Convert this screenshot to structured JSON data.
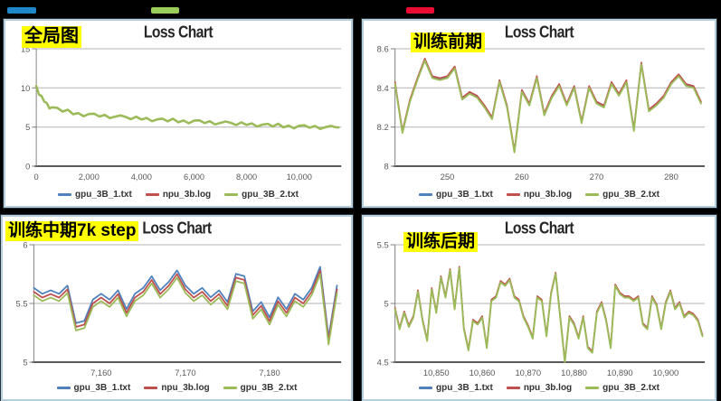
{
  "page": {
    "background": "#000000"
  },
  "top_swatches": [
    {
      "name": "blue-swatch",
      "color": "#1e87c8"
    },
    {
      "name": "green-swatch",
      "color": "#9acd5a"
    },
    {
      "name": "red-swatch",
      "color": "#ea0c32"
    }
  ],
  "chart_data": [
    {
      "id": "global",
      "type": "line",
      "title": "Loss Chart",
      "annotation": "全局图",
      "legend_position": "bottom",
      "grid": true,
      "xlim": [
        0,
        11600
      ],
      "ylim": [
        0,
        15
      ],
      "x_ticks": [
        {
          "v": 0,
          "label": "0"
        },
        {
          "v": 2000,
          "label": "2,000"
        },
        {
          "v": 4000,
          "label": "4,000"
        },
        {
          "v": 6000,
          "label": "6,000"
        },
        {
          "v": 8000,
          "label": "8,000"
        },
        {
          "v": 10000,
          "label": "10,000"
        }
      ],
      "y_ticks": [
        {
          "v": 15,
          "label": "15"
        },
        {
          "v": 10,
          "label": "10"
        },
        {
          "v": 5,
          "label": "5"
        },
        {
          "v": 0,
          "label": "0"
        }
      ],
      "x": [
        0,
        100,
        200,
        300,
        400,
        500,
        600,
        800,
        1000,
        1200,
        1400,
        1600,
        1800,
        2000,
        2200,
        2400,
        2600,
        2800,
        3000,
        3200,
        3400,
        3600,
        3800,
        4000,
        4200,
        4400,
        4600,
        4800,
        5000,
        5200,
        5400,
        5600,
        5800,
        6000,
        6200,
        6400,
        6600,
        6800,
        7000,
        7200,
        7400,
        7600,
        7800,
        8000,
        8200,
        8400,
        8600,
        8800,
        9000,
        9200,
        9400,
        9600,
        9800,
        10000,
        10200,
        10400,
        10600,
        10800,
        11000,
        11200,
        11400,
        11500
      ],
      "base": [
        10.25,
        9.15,
        8.97,
        8.27,
        8.05,
        7.38,
        7.52,
        7.45,
        6.98,
        7.21,
        6.64,
        6.79,
        6.38,
        6.67,
        6.7,
        6.35,
        6.55,
        6.15,
        6.33,
        6.49,
        6.3,
        6.0,
        6.32,
        5.97,
        6.16,
        5.75,
        5.98,
        6.07,
        5.73,
        6.07,
        5.61,
        5.84,
        5.48,
        5.82,
        5.86,
        5.52,
        5.73,
        5.34,
        5.53,
        5.71,
        5.54,
        5.26,
        5.6,
        5.27,
        5.47,
        5.07,
        5.31,
        5.41,
        5.08,
        5.42,
        4.96,
        5.19,
        4.83,
        5.17,
        5.23,
        4.91,
        5.14,
        4.77,
        4.98,
        5.15,
        4.97,
        4.95
      ],
      "series": [
        {
          "name": "gpu_3B_1.txt",
          "color": "#4F81BD",
          "offset": 0,
          "width": 1.3
        },
        {
          "name": "npu_3b.log",
          "color": "#C0504D",
          "offset": 0,
          "width": 1.3
        },
        {
          "name": "gpu_3B_2.txt",
          "color": "#9BBB59",
          "offset": 0,
          "width": 2.6
        }
      ]
    },
    {
      "id": "early",
      "type": "line",
      "title": "Loss Chart",
      "annotation": "训练前期",
      "legend_position": "bottom",
      "grid": true,
      "xlim": [
        243,
        284.5
      ],
      "ylim": [
        8,
        8.6
      ],
      "x_ticks": [
        {
          "v": 250,
          "label": "250"
        },
        {
          "v": 260,
          "label": "260"
        },
        {
          "v": 270,
          "label": "270"
        },
        {
          "v": 280,
          "label": "280"
        }
      ],
      "y_ticks": [
        {
          "v": 8.6,
          "label": "8.6"
        },
        {
          "v": 8.4,
          "label": "8.4"
        },
        {
          "v": 8.2,
          "label": "8.2"
        },
        {
          "v": 8,
          "label": "8"
        }
      ],
      "x": [
        243,
        244,
        245,
        246,
        247,
        248,
        249,
        250,
        251,
        252,
        253,
        254,
        255,
        256,
        257,
        258,
        259,
        260,
        261,
        262,
        263,
        264,
        265,
        266,
        267,
        268,
        269,
        270,
        271,
        272,
        273,
        274,
        275,
        276,
        277,
        278,
        279,
        280,
        281,
        282,
        283,
        284
      ],
      "base": [
        8.42,
        8.17,
        8.33,
        8.44,
        8.54,
        8.45,
        8.44,
        8.45,
        8.5,
        8.34,
        8.37,
        8.35,
        8.3,
        8.24,
        8.43,
        8.3,
        8.07,
        8.38,
        8.31,
        8.45,
        8.26,
        8.35,
        8.41,
        8.31,
        8.4,
        8.22,
        8.4,
        8.32,
        8.3,
        8.42,
        8.36,
        8.43,
        8.18,
        8.52,
        8.28,
        8.31,
        8.35,
        8.42,
        8.46,
        8.41,
        8.4,
        8.32
      ],
      "series": [
        {
          "name": "gpu_3B_1.txt",
          "color": "#4F81BD",
          "offset": 0.006,
          "width": 1.5
        },
        {
          "name": "npu_3b.log",
          "color": "#C0504D",
          "offset": 0.01,
          "width": 1.7
        },
        {
          "name": "gpu_3B_2.txt",
          "color": "#9BBB59",
          "offset": 0,
          "width": 1.9
        }
      ]
    },
    {
      "id": "mid-7k",
      "type": "line",
      "title": "Loss Chart",
      "annotation": "训练中期7k step",
      "legend_position": "bottom",
      "grid": true,
      "xlim": [
        7152,
        7188.5
      ],
      "ylim": [
        5,
        6
      ],
      "x_ticks": [
        {
          "v": 7160,
          "label": "7,160"
        },
        {
          "v": 7170,
          "label": "7,170"
        },
        {
          "v": 7180,
          "label": "7,180"
        }
      ],
      "y_ticks": [
        {
          "v": 6,
          "label": "6"
        },
        {
          "v": 5.5,
          "label": "5.5"
        },
        {
          "v": 5,
          "label": "5"
        }
      ],
      "x": [
        7152,
        7153,
        7154,
        7155,
        7156,
        7157,
        7158,
        7159,
        7160,
        7161,
        7162,
        7163,
        7164,
        7165,
        7166,
        7167,
        7168,
        7169,
        7170,
        7171,
        7172,
        7173,
        7174,
        7175,
        7176,
        7177,
        7178,
        7179,
        7180,
        7181,
        7182,
        7183,
        7184,
        7185,
        7186,
        7187,
        7188
      ],
      "base": [
        5.6,
        5.55,
        5.58,
        5.55,
        5.62,
        5.3,
        5.32,
        5.5,
        5.55,
        5.5,
        5.58,
        5.42,
        5.55,
        5.6,
        5.7,
        5.58,
        5.65,
        5.75,
        5.62,
        5.55,
        5.6,
        5.52,
        5.58,
        5.48,
        5.72,
        5.7,
        5.4,
        5.48,
        5.35,
        5.52,
        5.42,
        5.55,
        5.5,
        5.6,
        5.78,
        5.18,
        5.62
      ],
      "series": [
        {
          "name": "gpu_3B_1.txt",
          "color": "#4F81BD",
          "offset": 0.032,
          "width": 1.8
        },
        {
          "name": "npu_3b.log",
          "color": "#C0504D",
          "offset": 0,
          "width": 1.8
        },
        {
          "name": "gpu_3B_2.txt",
          "color": "#9BBB59",
          "offset": -0.03,
          "width": 1.8
        }
      ]
    },
    {
      "id": "late",
      "type": "line",
      "title": "Loss Chart",
      "annotation": "训练后期",
      "legend_position": "bottom",
      "grid": true,
      "xlim": [
        10841,
        10908.5
      ],
      "ylim": [
        4.5,
        5.5
      ],
      "x_ticks": [
        {
          "v": 10850,
          "label": "10,850"
        },
        {
          "v": 10860,
          "label": "10,860"
        },
        {
          "v": 10870,
          "label": "10,870"
        },
        {
          "v": 10880,
          "label": "10,880"
        },
        {
          "v": 10890,
          "label": "10,890"
        },
        {
          "v": 10900,
          "label": "10,900"
        }
      ],
      "y_ticks": [
        {
          "v": 5.5,
          "label": "5.5"
        },
        {
          "v": 5,
          "label": "5"
        },
        {
          "v": 4.5,
          "label": "4.5"
        }
      ],
      "x": [
        10841,
        10842,
        10843,
        10844,
        10845,
        10846,
        10847,
        10848,
        10849,
        10850,
        10851,
        10852,
        10853,
        10854,
        10855,
        10856,
        10857,
        10858,
        10859,
        10860,
        10861,
        10862,
        10863,
        10864,
        10865,
        10866,
        10867,
        10868,
        10869,
        10870,
        10871,
        10872,
        10873,
        10874,
        10875,
        10876,
        10877,
        10878,
        10879,
        10880,
        10881,
        10882,
        10883,
        10884,
        10885,
        10886,
        10887,
        10888,
        10889,
        10890,
        10891,
        10892,
        10893,
        10894,
        10895,
        10896,
        10897,
        10898,
        10899,
        10900,
        10901,
        10902,
        10903,
        10904,
        10905,
        10906,
        10907,
        10908
      ],
      "base": [
        4.95,
        4.78,
        4.92,
        4.8,
        4.88,
        5.1,
        4.85,
        4.68,
        5.12,
        4.92,
        5.22,
        5.05,
        5.28,
        4.95,
        5.3,
        4.78,
        4.6,
        4.85,
        4.82,
        4.88,
        4.62,
        5.02,
        5.05,
        5.18,
        5.15,
        5.2,
        5.05,
        5.02,
        4.88,
        4.8,
        4.7,
        5.05,
        5.02,
        4.72,
        5.08,
        5.25,
        4.88,
        4.5,
        4.88,
        4.82,
        4.7,
        4.88,
        4.62,
        4.58,
        4.92,
        5.0,
        4.85,
        4.62,
        5.15,
        5.08,
        5.05,
        5.05,
        5.02,
        5.05,
        4.82,
        4.78,
        5.05,
        4.98,
        4.78,
        5.0,
        5.1,
        4.95,
        5.0,
        4.88,
        4.92,
        4.9,
        4.85,
        4.72
      ],
      "series": [
        {
          "name": "gpu_3B_1.txt",
          "color": "#4F81BD",
          "offset": 0.005,
          "width": 1.5
        },
        {
          "name": "npu_3b.log",
          "color": "#C0504D",
          "offset": 0.012,
          "width": 1.7
        },
        {
          "name": "gpu_3B_2.txt",
          "color": "#9BBB59",
          "offset": 0,
          "width": 1.9
        }
      ]
    }
  ]
}
